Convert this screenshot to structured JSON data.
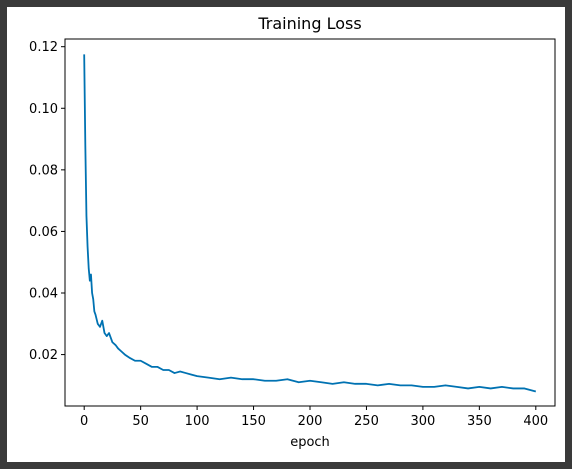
{
  "chart_data": {
    "type": "line",
    "title": "Training Loss",
    "xlabel": "epoch",
    "ylabel": "",
    "xlim": [
      -17,
      417
    ],
    "ylim": [
      0.0033,
      0.1225
    ],
    "xticks": [
      0,
      50,
      100,
      150,
      200,
      250,
      300,
      350,
      400
    ],
    "xtick_labels": [
      "0",
      "50",
      "100",
      "150",
      "200",
      "250",
      "300",
      "350",
      "400"
    ],
    "yticks": [
      0.02,
      0.04,
      0.06,
      0.08,
      0.1,
      0.12
    ],
    "ytick_labels": [
      "0.02",
      "0.04",
      "0.06",
      "0.08",
      "0.10",
      "0.12"
    ],
    "grid": false,
    "line_color": "#0072b2",
    "series": [
      {
        "name": "",
        "x": [
          0,
          1,
          2,
          3,
          4,
          5,
          6,
          7,
          8,
          9,
          10,
          12,
          14,
          16,
          18,
          20,
          22,
          25,
          28,
          30,
          33,
          36,
          40,
          45,
          50,
          55,
          60,
          65,
          70,
          75,
          80,
          85,
          90,
          95,
          100,
          110,
          120,
          130,
          140,
          150,
          160,
          170,
          180,
          190,
          200,
          210,
          220,
          230,
          240,
          250,
          260,
          270,
          280,
          290,
          300,
          310,
          320,
          330,
          340,
          350,
          360,
          370,
          380,
          390,
          400
        ],
        "y": [
          0.1175,
          0.088,
          0.065,
          0.055,
          0.048,
          0.044,
          0.046,
          0.04,
          0.038,
          0.034,
          0.033,
          0.03,
          0.029,
          0.031,
          0.027,
          0.026,
          0.027,
          0.024,
          0.023,
          0.022,
          0.021,
          0.02,
          0.019,
          0.018,
          0.018,
          0.017,
          0.016,
          0.016,
          0.015,
          0.015,
          0.014,
          0.0145,
          0.014,
          0.0135,
          0.013,
          0.0125,
          0.012,
          0.0125,
          0.012,
          0.012,
          0.0115,
          0.0115,
          0.012,
          0.011,
          0.0115,
          0.011,
          0.0105,
          0.011,
          0.0105,
          0.0105,
          0.01,
          0.0105,
          0.01,
          0.01,
          0.0095,
          0.0095,
          0.01,
          0.0095,
          0.009,
          0.0095,
          0.009,
          0.0095,
          0.009,
          0.009,
          0.008
        ]
      }
    ]
  }
}
